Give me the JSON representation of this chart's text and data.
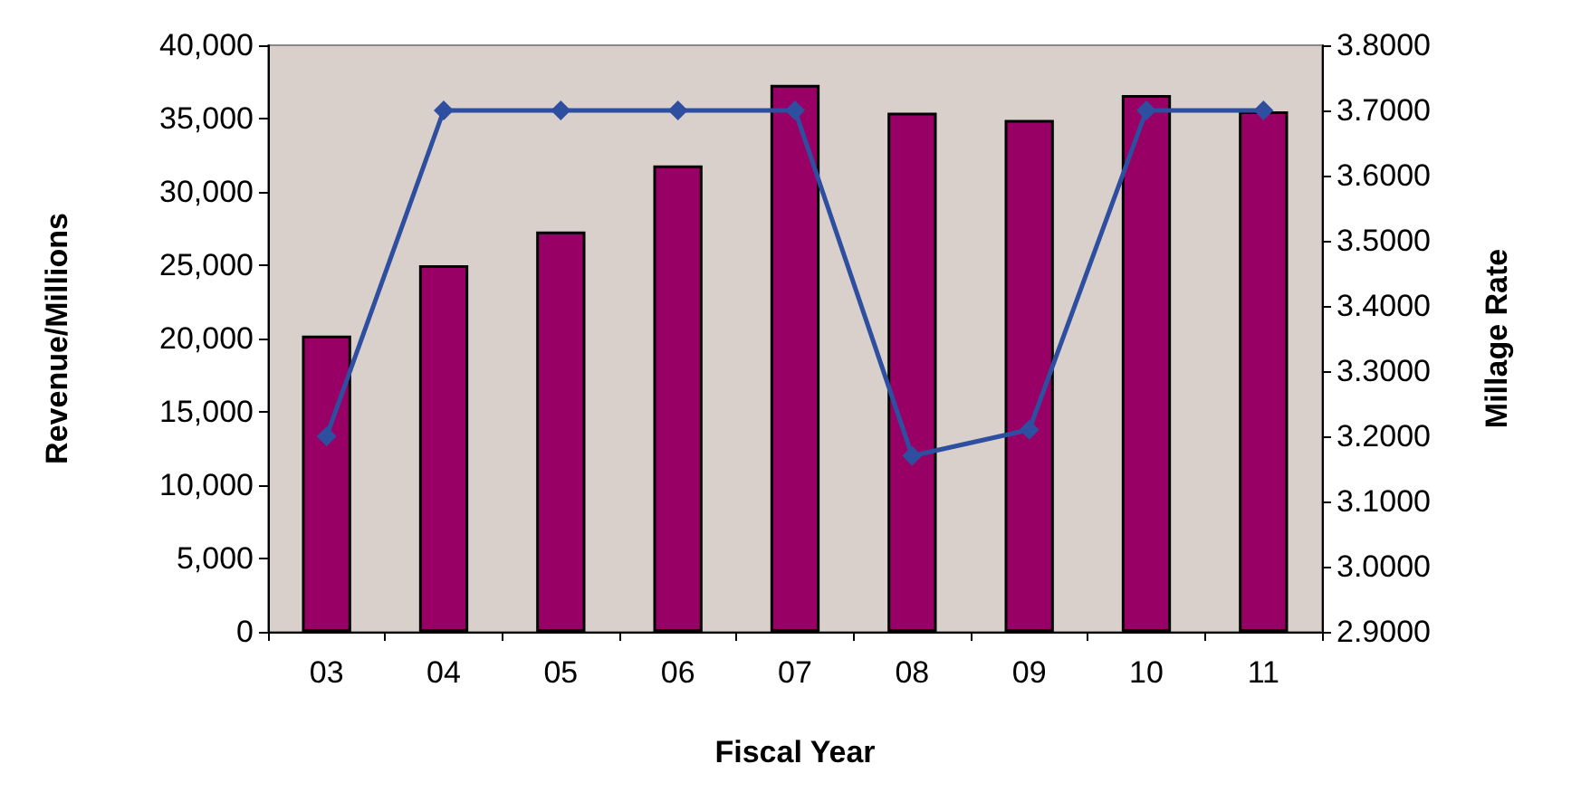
{
  "chart_data": {
    "type": "bar",
    "xlabel": "Fiscal Year",
    "ylabel": "Revenue/Millions",
    "y2label": "Millage Rate",
    "categories": [
      "03",
      "04",
      "05",
      "06",
      "07",
      "08",
      "09",
      "10",
      "11"
    ],
    "series": [
      {
        "color": "#990066",
        "values": [
          20200,
          25000,
          27300,
          31800,
          37300,
          35400,
          34900,
          36600,
          35500
        ]
      },
      {
        "type": "line",
        "axis": "y2",
        "color": "#2e4fa0",
        "marker": "diamond",
        "values": [
          3.2,
          3.7,
          3.7,
          3.7,
          3.7,
          3.17,
          3.21,
          3.7,
          3.7
        ]
      }
    ],
    "ylim": [
      0,
      40000
    ],
    "yticks": [
      {
        "value": 0,
        "label": "0"
      },
      {
        "value": 5000,
        "label": "5,000"
      },
      {
        "value": 10000,
        "label": "10,000"
      },
      {
        "value": 15000,
        "label": "15,000"
      },
      {
        "value": 20000,
        "label": "20,000"
      },
      {
        "value": 25000,
        "label": "25,000"
      },
      {
        "value": 30000,
        "label": "30,000"
      },
      {
        "value": 35000,
        "label": "35,000"
      },
      {
        "value": 40000,
        "label": "40,000"
      }
    ],
    "y2lim": [
      2.9,
      3.8
    ],
    "y2ticks": [
      {
        "value": 2.9,
        "label": "2.9000"
      },
      {
        "value": 3.0,
        "label": "3.0000"
      },
      {
        "value": 3.1,
        "label": "3.1000"
      },
      {
        "value": 3.2,
        "label": "3.2000"
      },
      {
        "value": 3.3,
        "label": "3.3000"
      },
      {
        "value": 3.4,
        "label": "3.4000"
      },
      {
        "value": 3.5,
        "label": "3.5000"
      },
      {
        "value": 3.6,
        "label": "3.6000"
      },
      {
        "value": 3.7,
        "label": "3.7000"
      },
      {
        "value": 3.8,
        "label": "3.8000"
      }
    ],
    "grid": false
  }
}
